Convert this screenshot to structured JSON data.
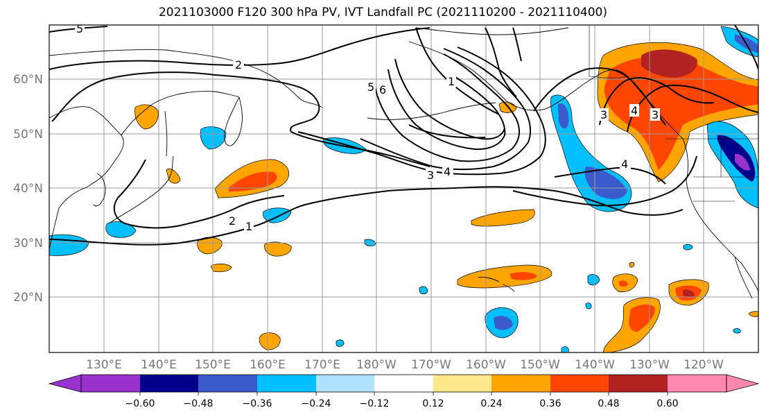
{
  "title": "2021103000 F120 300 hPa PV, IVT Landfall PC (2021110200 - 2021110400)",
  "lat_labels": [
    "60°N",
    "50°N",
    "40°N",
    "30°N",
    "20°N"
  ],
  "lon_labels": [
    "130°E",
    "140°E",
    "150°E",
    "160°E",
    "170°E",
    "180°W",
    "170°W",
    "160°W",
    "150°W",
    "140°W",
    "130°W",
    "120°W"
  ],
  "colorbar": {
    "ticks": [
      "−0.60",
      "−0.48",
      "−0.36",
      "−0.24",
      "−0.12",
      "0.12",
      "0.24",
      "0.36",
      "0.48",
      "0.60"
    ],
    "colors": [
      "#9932cc",
      "#00008b",
      "#3a5bcc",
      "#00bfff",
      "#b0e2ff",
      "#ffffff",
      "#ffe98a",
      "#ffa500",
      "#ff4500",
      "#b22222",
      "#ff88b0"
    ]
  },
  "contour_labels": [
    "5",
    "2",
    "5",
    "6",
    "1",
    "3",
    "4",
    "3",
    "4",
    "4",
    "3",
    "2",
    "1"
  ]
}
